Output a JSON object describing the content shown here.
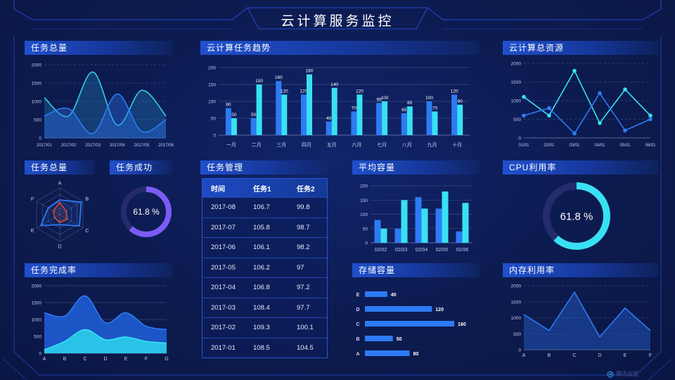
{
  "title": "云计算服务监控",
  "watermark": {
    "label": "腾讯云图"
  },
  "colors": {
    "background": "#0c1b4f",
    "blue": "#2d7bf4",
    "cyan": "#38e1f2",
    "line_cyan": "#35cfe2",
    "purple": "#7c5cf6",
    "red": "#f04a2c",
    "gauge_track": "#252c6e",
    "axis_text": "#c3cdf0",
    "frame_line": "#2b50d8"
  },
  "panels": {
    "tasks_total_top": {
      "title": "任务总量"
    },
    "task_trend": {
      "title": "云计算任务趋势"
    },
    "total_resources": {
      "title": "云计算总资源"
    },
    "task_radar": {
      "title": "任务总量"
    },
    "task_success": {
      "title": "任务成功",
      "value": "61.8 %"
    },
    "task_table": {
      "title": "任务管理",
      "columns": [
        "时间",
        "任务1",
        "任务2"
      ],
      "rows": [
        [
          "2017-08",
          "106.7",
          "99.8"
        ],
        [
          "2017-07",
          "105.8",
          "98.7"
        ],
        [
          "2017-06",
          "106.1",
          "98.2"
        ],
        [
          "2017-05",
          "106.2",
          "97"
        ],
        [
          "2017-04",
          "106.8",
          "97.2"
        ],
        [
          "2017-03",
          "108.4",
          "97.7"
        ],
        [
          "2017-02",
          "109.3",
          "100.1"
        ],
        [
          "2017-01",
          "108.5",
          "104.5"
        ]
      ]
    },
    "avg_capacity": {
      "title": "平均容量"
    },
    "cpu": {
      "title": "CPU利用率",
      "value": "61.8 %"
    },
    "completion": {
      "title": "任务完成率"
    },
    "storage": {
      "title": "存储容量"
    },
    "memory": {
      "title": "内存利用率"
    }
  },
  "chart_data": [
    {
      "id": "tasks_total_top",
      "type": "area",
      "title": "任务总量",
      "x": [
        "2017/01",
        "2017/02",
        "2017/03",
        "2017/04",
        "2017/05",
        "2017/06"
      ],
      "series": [
        {
          "name": "cyan-series",
          "color": "cyan",
          "values": [
            1100,
            600,
            1800,
            350,
            1300,
            600
          ]
        },
        {
          "name": "blue-series",
          "color": "blue",
          "values": [
            600,
            800,
            120,
            1200,
            180,
            500
          ]
        }
      ],
      "ylim": [
        0,
        2000
      ],
      "yticks": [
        0,
        500,
        1000,
        1500,
        2000
      ],
      "smooth": true,
      "grid": "dashed"
    },
    {
      "id": "task_trend",
      "type": "bar",
      "title": "云计算任务趋势",
      "categories": [
        "一月",
        "二月",
        "三月",
        "四月",
        "五月",
        "六月",
        "七月",
        "八月",
        "九月",
        "十月"
      ],
      "series": [
        {
          "name": "blue-series",
          "color": "blue",
          "values": [
            80,
            50,
            160,
            120,
            40,
            70,
            95,
            65,
            100,
            120
          ]
        },
        {
          "name": "cyan-series",
          "color": "cyan",
          "values": [
            50,
            150,
            120,
            180,
            140,
            120,
            100,
            85,
            70,
            90
          ]
        }
      ],
      "ylim": [
        0,
        200
      ],
      "yticks": [
        0,
        50,
        100,
        150,
        200
      ],
      "labels": true
    },
    {
      "id": "total_resources",
      "type": "line",
      "title": "云计算总资源",
      "x": [
        "01/01",
        "02/01",
        "03/01",
        "04/01",
        "05/01",
        "06/01"
      ],
      "series": [
        {
          "name": "cyan-series",
          "color": "cyan",
          "values": [
            1100,
            600,
            1800,
            400,
            1300,
            600
          ]
        },
        {
          "name": "blue-series",
          "color": "blue",
          "values": [
            600,
            800,
            120,
            1200,
            200,
            500
          ]
        }
      ],
      "ylim": [
        0,
        2000
      ],
      "yticks": [
        0,
        500,
        1000,
        1500,
        2000
      ],
      "markers": true,
      "grid": "dashed"
    },
    {
      "id": "task_radar",
      "type": "radar",
      "title": "任务总量",
      "axes": [
        "A",
        "B",
        "C",
        "D",
        "E",
        "F"
      ],
      "max": 100,
      "series": [
        {
          "name": "blue-series",
          "color": "blue",
          "values": [
            55,
            93,
            85,
            38,
            82,
            50
          ]
        },
        {
          "name": "red-series",
          "color": "red",
          "values": [
            45,
            28,
            33,
            30,
            22,
            28
          ]
        }
      ]
    },
    {
      "id": "task_success_gauge",
      "type": "gauge",
      "title": "任务成功",
      "value": 61.8,
      "label": "61.8 %",
      "color": "purple"
    },
    {
      "id": "avg_capacity",
      "type": "bar",
      "title": "平均容量",
      "categories": [
        "02/02",
        "02/03",
        "02/04",
        "02/05",
        "02/06"
      ],
      "series": [
        {
          "name": "blue-series",
          "color": "blue",
          "values": [
            80,
            50,
            160,
            120,
            40
          ]
        },
        {
          "name": "cyan-series",
          "color": "cyan",
          "values": [
            50,
            150,
            120,
            180,
            140
          ]
        }
      ],
      "ylim": [
        0,
        200
      ],
      "yticks": [
        0,
        50,
        100,
        150,
        200
      ],
      "labels": false
    },
    {
      "id": "cpu_gauge",
      "type": "gauge",
      "title": "CPU利用率",
      "value": 61.8,
      "label": "61.8 %",
      "color": "cyan"
    },
    {
      "id": "completion",
      "type": "stacked-area",
      "title": "任务完成率",
      "x": [
        "A",
        "B",
        "C",
        "D",
        "E",
        "F",
        "G"
      ],
      "series": [
        {
          "name": "blue-series",
          "color": "blue",
          "values": [
            1200,
            1100,
            1700,
            900,
            1200,
            800,
            700
          ]
        },
        {
          "name": "cyan-series",
          "color": "cyan",
          "values": [
            100,
            350,
            700,
            400,
            480,
            350,
            300
          ]
        }
      ],
      "ylim": [
        0,
        2000
      ],
      "yticks": [
        0,
        500,
        1000,
        1500,
        2000
      ],
      "smooth": true
    },
    {
      "id": "storage",
      "type": "hbar",
      "title": "存储容量",
      "categories": [
        "E",
        "D",
        "C",
        "B",
        "A"
      ],
      "values": [
        40,
        120,
        160,
        50,
        80
      ],
      "xmax": 170,
      "labels": true
    },
    {
      "id": "memory",
      "type": "area",
      "title": "内存利用率",
      "x": [
        "A",
        "B",
        "C",
        "D",
        "E",
        "F"
      ],
      "series": [
        {
          "name": "blue-series",
          "color": "blue",
          "values": [
            1100,
            600,
            1800,
            400,
            1300,
            600
          ]
        }
      ],
      "ylim": [
        0,
        2000
      ],
      "yticks": [
        0,
        500,
        1000,
        1500,
        2000
      ],
      "smooth": false,
      "grid": "dashed"
    }
  ]
}
